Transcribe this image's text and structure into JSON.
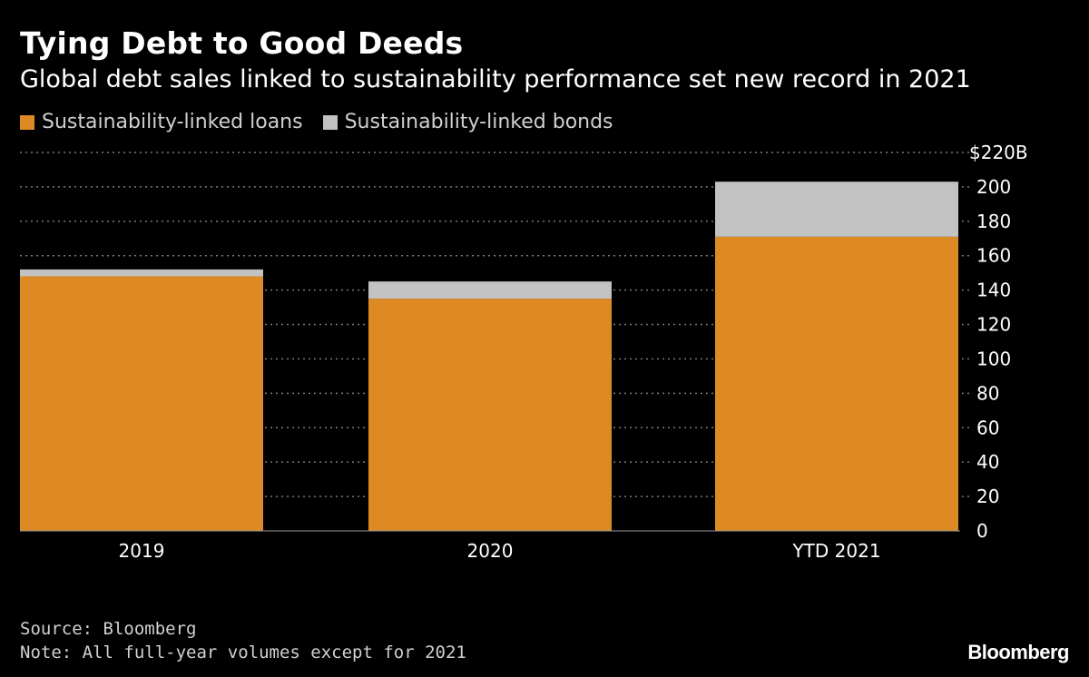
{
  "chart_data": {
    "type": "bar",
    "stacked": true,
    "title": "Tying Debt to Good Deeds",
    "subtitle": "Global debt sales linked to sustainability performance set new record in 2021",
    "categories": [
      "2019",
      "2020",
      "YTD 2021"
    ],
    "series": [
      {
        "name": "Sustainability-linked loans",
        "color": "#DE8A24",
        "values": [
          148,
          135,
          171
        ]
      },
      {
        "name": "Sustainability-linked bonds",
        "color": "#C2C2C2",
        "values": [
          4,
          10,
          32
        ]
      }
    ],
    "ylim": [
      0,
      220
    ],
    "yticks": [
      0,
      20,
      40,
      60,
      80,
      100,
      120,
      140,
      160,
      180,
      200,
      220
    ],
    "ytick_top_label": "$220B",
    "grid": true,
    "legend_position": "top-left",
    "axis_side": "right"
  },
  "footer": {
    "source": "Source: Bloomberg",
    "note": "Note: All full-year volumes except for 2021"
  },
  "brand": "Bloomberg"
}
